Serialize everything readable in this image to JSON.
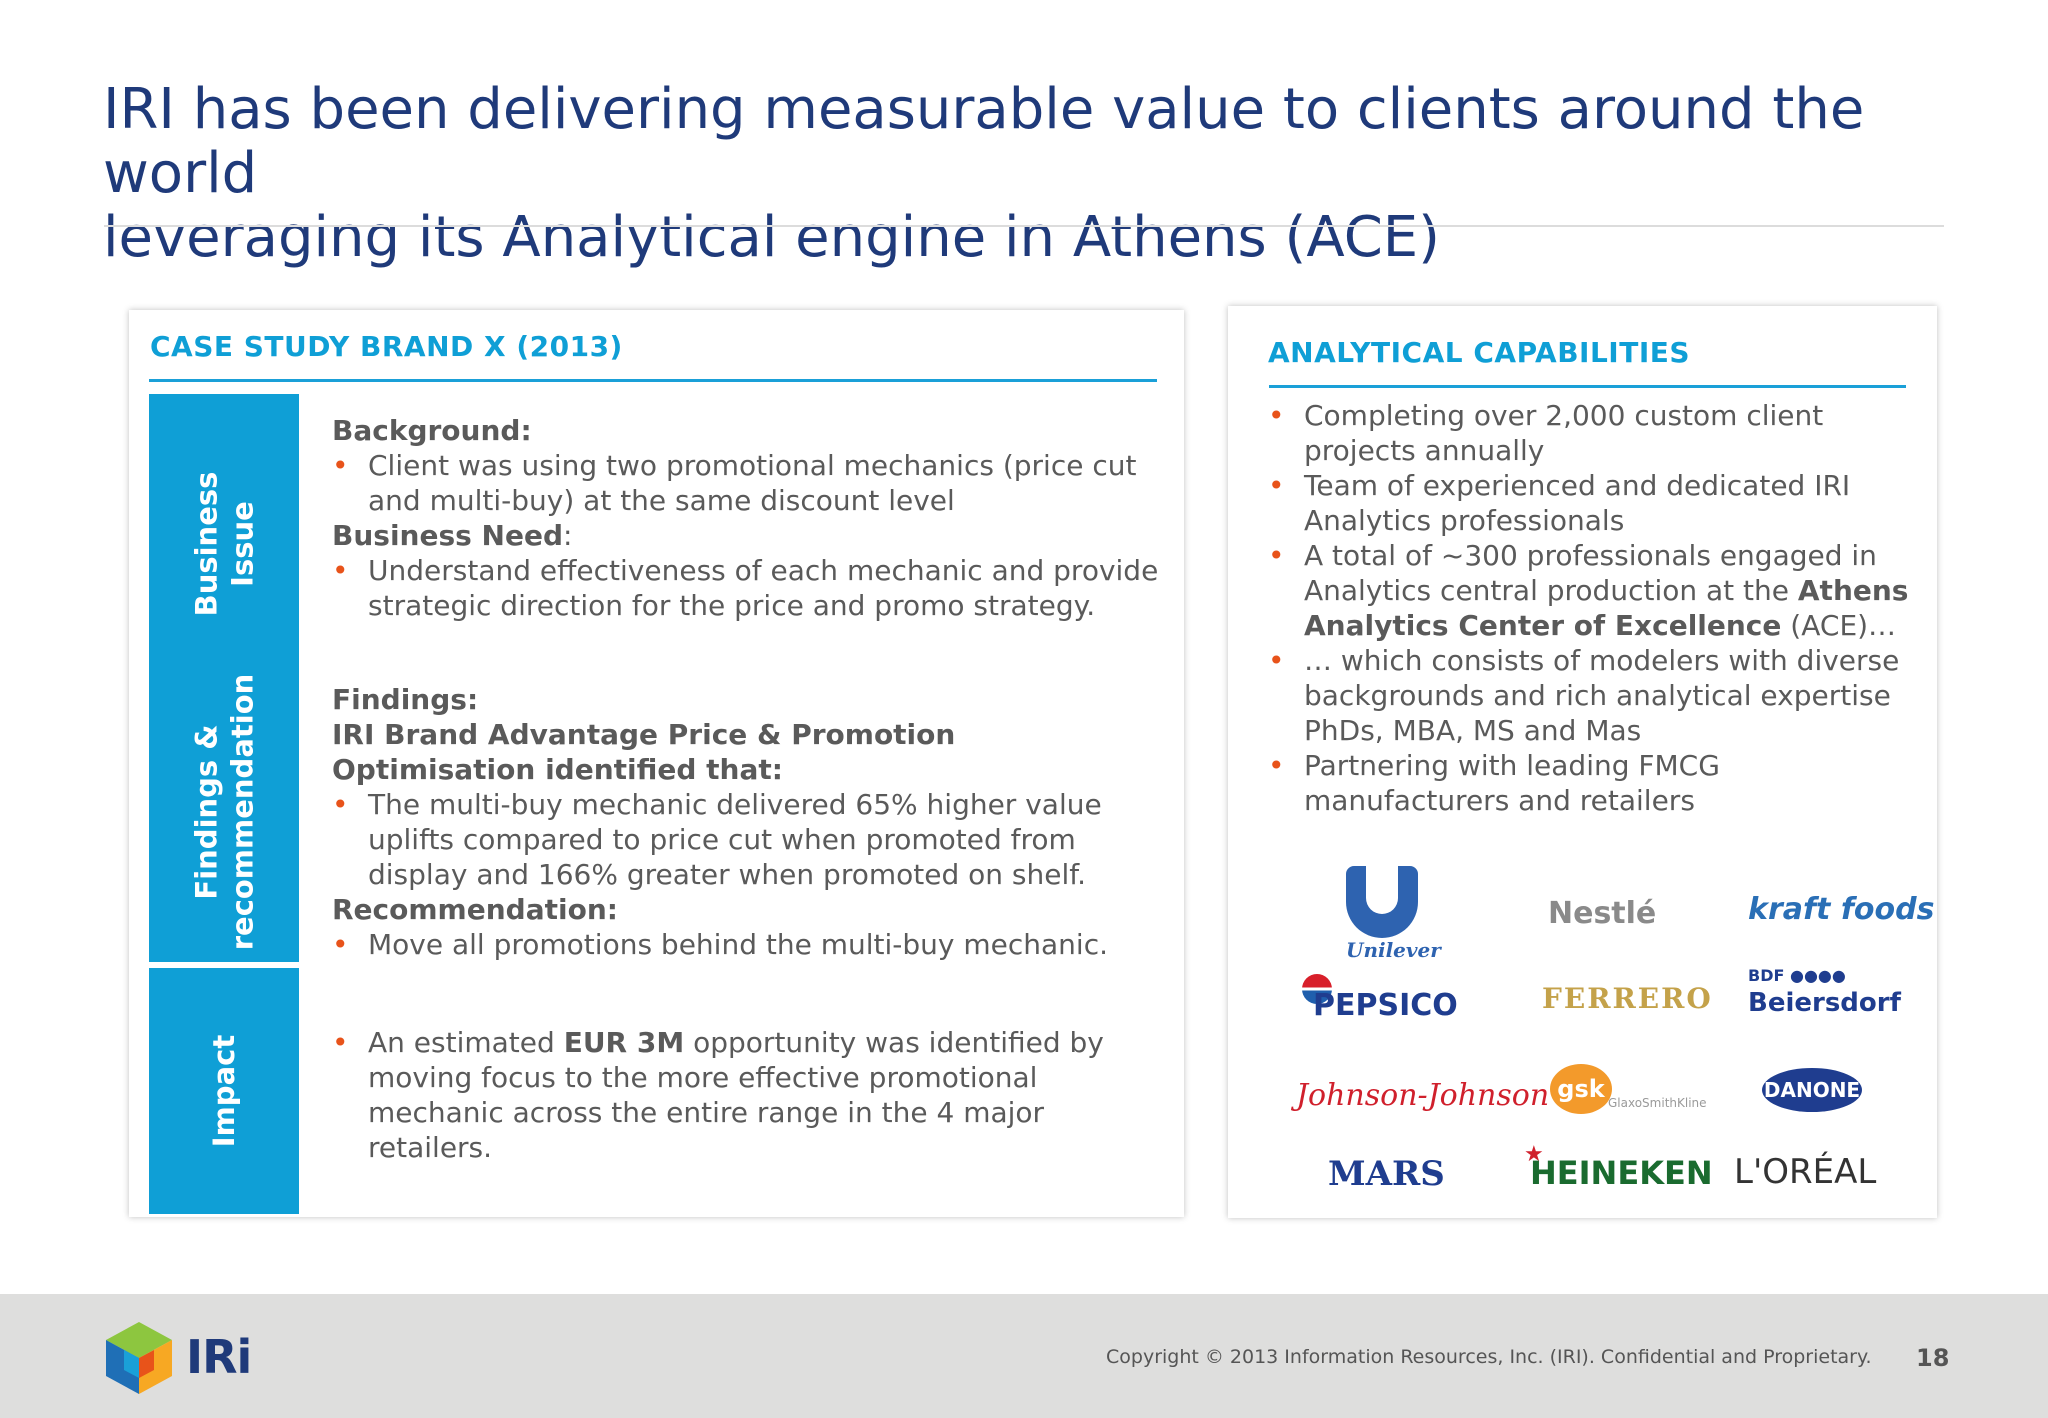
{
  "title": {
    "line1": "IRI has been delivering measurable value to clients around the world",
    "line2": "leveraging its Analytical engine in Athens (ACE)"
  },
  "case_study": {
    "heading": "CASE STUDY BRAND X (2013)",
    "tabs": {
      "business_issue": [
        "Business",
        "Issue"
      ],
      "findings": [
        "Findings &",
        "recommendation"
      ],
      "impact": "Impact"
    },
    "background_label": "Background:",
    "background_bullets": [
      "Client was using two promotional mechanics (price cut and multi-buy) at the same discount level"
    ],
    "business_need_label": "Business Need",
    "business_need_colon": ":",
    "business_need_bullets": [
      "Understand effectiveness of each mechanic and provide strategic direction for the price and promo strategy."
    ],
    "findings_label": "Findings:",
    "findings_sub": "IRI Brand Advantage Price & Promotion Optimisation identified that:",
    "findings_bullets": [
      "The multi-buy mechanic delivered 65% higher value uplifts compared to price cut when promoted from display and 166% greater when promoted on shelf."
    ],
    "recommendation_label": "Recommendation:",
    "recommendation_bullets": [
      "Move all promotions behind the multi-buy mechanic."
    ],
    "impact_pre": "An estimated ",
    "impact_bold": "EUR 3M",
    "impact_post": " opportunity was identified by moving focus to the more effective promotional mechanic across the entire range in the 4 major retailers."
  },
  "capabilities": {
    "heading": "ANALYTICAL CAPABILITIES",
    "bullet1": "Completing over 2,000 custom client projects annually",
    "bullet2": "Team of experienced and dedicated IRI Analytics professionals",
    "bullet3_pre": "A total of ~300 professionals engaged in Analytics central production at the ",
    "bullet3_bold": "Athens Analytics Center of Excellence",
    "bullet3_post": " (ACE)…",
    "bullet4": "… which consists of modelers with diverse backgrounds and rich analytical expertise PhDs, MBA, MS and Mas",
    "bullet5": "Partnering with leading FMCG manufacturers and retailers"
  },
  "logos": {
    "unilever": "Unilever",
    "nestle": "Nestlé",
    "kraft": "kraft foods",
    "pepsico": "PEPSICO",
    "ferrero": "FERRERO",
    "bdf": "BDF ●●●●",
    "beiersdorf": "Beiersdorf",
    "jnj": "Johnson-Johnson",
    "gsk": "gsk",
    "gsk_sub": "GlaxoSmithKline",
    "danone": "DANONE",
    "mars": "MARS",
    "heineken": "HEINEKEN",
    "heineken_star": "★",
    "loreal": "L'ORÉAL"
  },
  "footer": {
    "brand": "IRi",
    "copyright": "Copyright © 2013 Information Resources, Inc. (IRI). Confidential and Proprietary.",
    "page_number": "18"
  }
}
